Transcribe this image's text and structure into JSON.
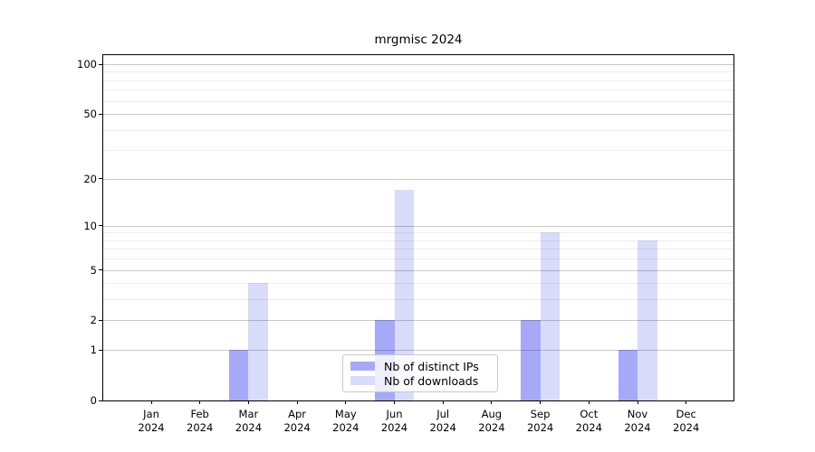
{
  "chart_data": {
    "type": "bar",
    "title": "mrgmisc 2024",
    "categories": [
      "Jan",
      "Feb",
      "Mar",
      "Apr",
      "May",
      "Jun",
      "Jul",
      "Aug",
      "Sep",
      "Oct",
      "Nov",
      "Dec"
    ],
    "x_year": "2024",
    "series": [
      {
        "name": "Nb of distinct IPs",
        "color": "#a6a9f8",
        "values": [
          0,
          0,
          1,
          0,
          0,
          2,
          0,
          0,
          2,
          0,
          1,
          0
        ]
      },
      {
        "name": "Nb of downloads",
        "color": "#d9dbfa",
        "values": [
          0,
          0,
          4,
          0,
          0,
          17,
          0,
          0,
          9,
          0,
          8,
          0
        ]
      }
    ],
    "yscale": "log1p",
    "ylim": [
      0,
      113
    ],
    "y_ticks": [
      0,
      1,
      2,
      5,
      10,
      20,
      50,
      100
    ],
    "y_minor_ticks": [
      3,
      4,
      6,
      7,
      8,
      9,
      30,
      40,
      60,
      70,
      80,
      90
    ],
    "grid": true,
    "legend_position": "lower center"
  },
  "colors": {
    "background": "#ffffff",
    "axis": "#000000",
    "grid_major": "rgba(0,0,0,0.21)",
    "grid_minor": "rgba(0,0,0,0.07)",
    "distinct_ips": "#a6a9f8",
    "downloads": "#d9dbfa"
  }
}
